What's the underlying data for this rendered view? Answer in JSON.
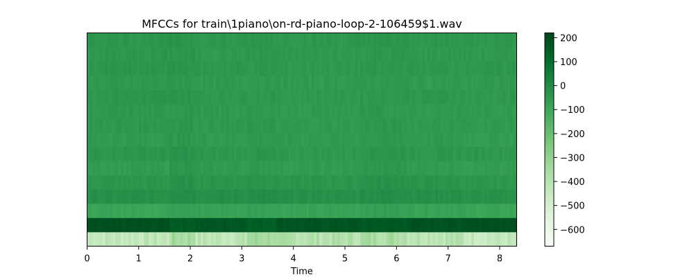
{
  "chart_data": {
    "type": "heatmap",
    "title": "MFCCs for train\\1piano\\on-rd-piano-loop-2-106459$1.wav",
    "xlabel": "Time",
    "ylabel": "",
    "xlim": [
      0,
      8.33
    ],
    "x_ticks": [
      0,
      1,
      2,
      3,
      4,
      5,
      6,
      7,
      8
    ],
    "x_tick_labels": [
      "0",
      "1",
      "2",
      "3",
      "4",
      "5",
      "6",
      "7",
      "8"
    ],
    "colormap": "Greens",
    "color_low": "#f7fcf5",
    "color_high": "#00441b",
    "vmin": -670,
    "vmax": 220,
    "colorbar_ticks": [
      200,
      100,
      0,
      -100,
      -200,
      -300,
      -400,
      -500,
      -600
    ],
    "colorbar_tick_labels": [
      "200",
      "100",
      "0",
      "−100",
      "−200",
      "−300",
      "−400",
      "−500",
      "−600"
    ],
    "n_coefficients": 15,
    "segments": [
      {
        "start": 0.0,
        "end": 1.6
      },
      {
        "start": 1.6,
        "end": 2.1
      },
      {
        "start": 2.1,
        "end": 3.1
      },
      {
        "start": 3.1,
        "end": 3.65
      },
      {
        "start": 3.65,
        "end": 5.3
      },
      {
        "start": 5.3,
        "end": 6.2
      },
      {
        "start": 6.2,
        "end": 7.3
      },
      {
        "start": 7.3,
        "end": 8.33
      }
    ],
    "coefficients_mean_by_segment": [
      [
        -430,
        -350,
        -420,
        -340,
        -390,
        -360,
        -400,
        -440
      ],
      [
        185,
        160,
        170,
        150,
        175,
        165,
        180,
        190
      ],
      [
        -90,
        -70,
        -80,
        -75,
        -85,
        -70,
        -80,
        -90
      ],
      [
        -20,
        -5,
        -15,
        -10,
        -20,
        -10,
        -15,
        -25
      ],
      [
        -40,
        -25,
        -35,
        -30,
        -40,
        -25,
        -35,
        -45
      ],
      [
        -60,
        -40,
        -55,
        -50,
        -60,
        -45,
        -55,
        -65
      ],
      [
        -40,
        -30,
        -45,
        -40,
        -50,
        -35,
        -45,
        -45
      ],
      [
        -55,
        -45,
        -55,
        -50,
        -55,
        -50,
        -55,
        -60
      ],
      [
        -45,
        -40,
        -50,
        -45,
        -55,
        -45,
        -50,
        -55
      ],
      [
        -50,
        -45,
        -55,
        -50,
        -55,
        -50,
        -55,
        -55
      ],
      [
        -40,
        -35,
        -45,
        -45,
        -50,
        -45,
        -45,
        -50
      ],
      [
        -50,
        -45,
        -55,
        -50,
        -55,
        -50,
        -55,
        -55
      ],
      [
        -40,
        -35,
        -45,
        -45,
        -50,
        -45,
        -45,
        -45
      ],
      [
        -45,
        -40,
        -50,
        -45,
        -50,
        -45,
        -50,
        -50
      ],
      [
        -40,
        -35,
        -45,
        -40,
        -45,
        -40,
        -45,
        -45
      ]
    ]
  }
}
